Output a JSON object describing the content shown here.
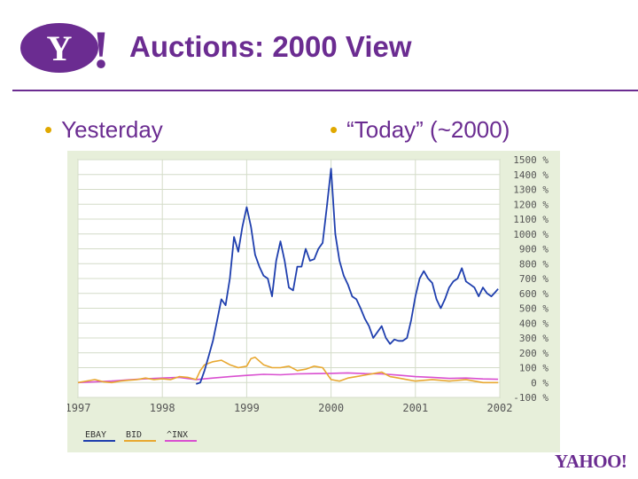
{
  "header": {
    "logo_text": "Y!",
    "title": "Auctions: 2000 View"
  },
  "bullets": {
    "left": "Yesterday",
    "right": "“Today” (~2000)"
  },
  "footer": {
    "logo_text": "YAHOO!"
  },
  "colors": {
    "brand_purple": "#6b2c91",
    "bullet_yellow": "#e0a800",
    "ebay": "#1f3fae",
    "bid": "#e8a830",
    "inx": "#d94fd0"
  },
  "chart_data": {
    "type": "line",
    "title": "",
    "xlabel": "",
    "ylabel": "",
    "x_ticks": [
      "1997",
      "1998",
      "1999",
      "2000",
      "2001",
      "2002"
    ],
    "y_ticks": [
      "1500 %",
      "1400 %",
      "1300 %",
      "1200 %",
      "1100 %",
      "1000 %",
      "900 %",
      "800 %",
      "700 %",
      "600 %",
      "500 %",
      "400 %",
      "300 %",
      "200 %",
      "100 %",
      "0 %",
      "-100 %"
    ],
    "xlim": [
      1997.0,
      2002.0
    ],
    "ylim": [
      -100,
      1500
    ],
    "grid": true,
    "legend_position": "bottom-left",
    "series": [
      {
        "name": "EBAY",
        "color": "#1f3fae",
        "x": [
          1998.4,
          1998.45,
          1998.5,
          1998.55,
          1998.6,
          1998.65,
          1998.7,
          1998.75,
          1998.8,
          1998.85,
          1998.9,
          1998.95,
          1999.0,
          1999.05,
          1999.1,
          1999.15,
          1999.2,
          1999.25,
          1999.3,
          1999.35,
          1999.4,
          1999.45,
          1999.5,
          1999.55,
          1999.6,
          1999.65,
          1999.7,
          1999.75,
          1999.8,
          1999.85,
          1999.9,
          1999.95,
          2000.0,
          2000.05,
          2000.1,
          2000.15,
          2000.2,
          2000.25,
          2000.3,
          2000.35,
          2000.4,
          2000.45,
          2000.5,
          2000.55,
          2000.6,
          2000.65,
          2000.7,
          2000.75,
          2000.8,
          2000.85,
          2000.9,
          2000.95,
          2001.0,
          2001.05,
          2001.1,
          2001.15,
          2001.2,
          2001.25,
          2001.3,
          2001.35,
          2001.4,
          2001.45,
          2001.5,
          2001.55,
          2001.6,
          2001.65,
          2001.7,
          2001.75,
          2001.8,
          2001.85,
          2001.9,
          2001.95,
          2001.98
        ],
        "values": [
          -10,
          0,
          80,
          180,
          280,
          420,
          560,
          520,
          700,
          980,
          880,
          1050,
          1180,
          1050,
          860,
          780,
          720,
          700,
          580,
          820,
          950,
          820,
          640,
          620,
          780,
          780,
          900,
          820,
          830,
          900,
          940,
          1180,
          1440,
          1000,
          820,
          720,
          660,
          580,
          560,
          500,
          430,
          380,
          300,
          340,
          380,
          300,
          260,
          290,
          280,
          280,
          300,
          420,
          580,
          700,
          750,
          700,
          670,
          560,
          500,
          560,
          640,
          680,
          700,
          770,
          680,
          660,
          640,
          580,
          640,
          600,
          580,
          610,
          630
        ]
      },
      {
        "name": "BID",
        "color": "#e8a830",
        "x": [
          1997.0,
          1997.1,
          1997.2,
          1997.3,
          1997.4,
          1997.5,
          1997.6,
          1997.7,
          1997.8,
          1997.9,
          1998.0,
          1998.1,
          1998.2,
          1998.3,
          1998.4,
          1998.45,
          1998.5,
          1998.55,
          1998.6,
          1998.7,
          1998.8,
          1998.9,
          1999.0,
          1999.05,
          1999.1,
          1999.2,
          1999.3,
          1999.4,
          1999.5,
          1999.6,
          1999.7,
          1999.8,
          1999.9,
          2000.0,
          2000.1,
          2000.2,
          2000.3,
          2000.4,
          2000.5,
          2000.6,
          2000.7,
          2000.8,
          2000.9,
          2001.0,
          2001.2,
          2001.4,
          2001.6,
          2001.8,
          2001.98
        ],
        "values": [
          0,
          10,
          20,
          5,
          0,
          10,
          15,
          20,
          30,
          20,
          25,
          20,
          40,
          35,
          20,
          80,
          120,
          130,
          140,
          150,
          120,
          100,
          110,
          160,
          170,
          120,
          100,
          100,
          110,
          80,
          90,
          110,
          100,
          20,
          10,
          30,
          40,
          50,
          60,
          70,
          40,
          30,
          20,
          10,
          20,
          10,
          20,
          0,
          0
        ]
      },
      {
        "name": "^INX",
        "color": "#d94fd0",
        "x": [
          1997.0,
          1997.2,
          1997.4,
          1997.6,
          1997.8,
          1998.0,
          1998.2,
          1998.4,
          1998.6,
          1998.8,
          1999.0,
          1999.2,
          1999.4,
          1999.6,
          1999.8,
          2000.0,
          2000.2,
          2000.4,
          2000.6,
          2000.8,
          2001.0,
          2001.2,
          2001.4,
          2001.6,
          2001.8,
          2001.98
        ],
        "values": [
          0,
          5,
          10,
          18,
          25,
          30,
          35,
          20,
          30,
          40,
          48,
          55,
          52,
          58,
          60,
          62,
          65,
          60,
          58,
          50,
          40,
          35,
          28,
          30,
          24,
          22
        ]
      }
    ]
  }
}
